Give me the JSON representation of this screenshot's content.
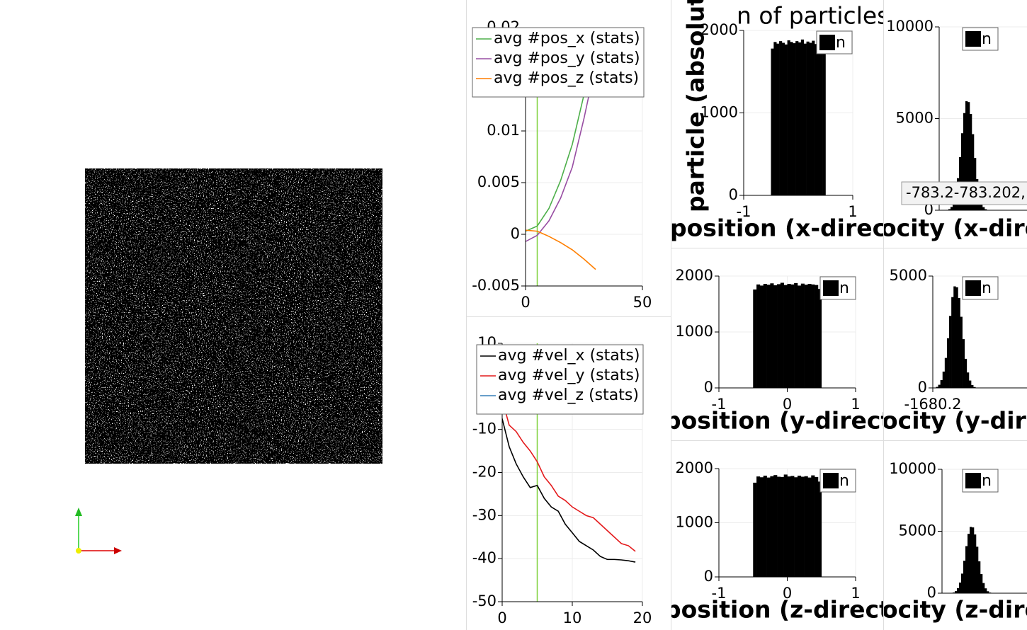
{
  "chart_data": [
    {
      "type": "line",
      "x": [
        0,
        5,
        10,
        15,
        20,
        25,
        30
      ],
      "series": [
        {
          "name": "avg #pos_x (stats)",
          "color": "#4daf4a",
          "values": [
            0.0003,
            0.0008,
            0.0025,
            0.0052,
            0.0087,
            0.0135,
            0.019
          ]
        },
        {
          "name": "avg #pos_y (stats)",
          "color": "#984ea3",
          "values": [
            -0.0007,
            -0.0001,
            0.0013,
            0.0035,
            0.0065,
            0.0112,
            0.0165
          ]
        },
        {
          "name": "avg #pos_z (stats)",
          "color": "#ff7f00",
          "values": [
            0.0004,
            0.0003,
            -0.0002,
            -0.0008,
            -0.0015,
            -0.0024,
            -0.0034
          ]
        }
      ],
      "xlim": [
        0,
        50
      ],
      "xticks": [
        0,
        50
      ],
      "ylim": [
        -0.005,
        0.02
      ],
      "yticks": [
        -0.005,
        0,
        0.005,
        0.01,
        0.015,
        0.02
      ],
      "grid": true,
      "marker_x": 5,
      "marker_color": "#7fd13b"
    },
    {
      "type": "line",
      "x": [
        0,
        1,
        2,
        3,
        4,
        5,
        6,
        7,
        8,
        9,
        10,
        11,
        12,
        13,
        14,
        15,
        16,
        17,
        18,
        19
      ],
      "series": [
        {
          "name": "avg #vel_x (stats)",
          "color": "#000000",
          "values": [
            -7.5,
            -14,
            -18,
            -21,
            -23.5,
            -23,
            -26,
            -28,
            -29,
            -32,
            -34,
            -36,
            -37,
            -38,
            -39.5,
            -40.2,
            -40.2,
            -40.3,
            -40.5,
            -40.8
          ]
        },
        {
          "name": "avg #vel_y (stats)",
          "color": "#e41a1c",
          "values": [
            -3,
            -9,
            -10.5,
            -13,
            -15,
            -17.5,
            -21,
            -23,
            -25.5,
            -26.5,
            -28,
            -29,
            -30,
            -30.5,
            -32,
            -33.5,
            -35,
            -36.5,
            -37,
            -38.3
          ]
        },
        {
          "name": "avg #vel_z (stats)",
          "color": "#377eb8",
          "values": [
            0,
            0,
            0,
            0,
            0,
            0,
            0,
            0,
            0,
            0,
            0,
            0,
            0,
            0,
            0,
            0,
            0,
            0,
            0,
            0
          ]
        }
      ],
      "xlim": [
        0,
        20
      ],
      "xticks": [
        0,
        10,
        20
      ],
      "ylim": [
        -50,
        10
      ],
      "yticks": [
        -50,
        -40,
        -30,
        -20,
        -10,
        0,
        10
      ],
      "grid": true,
      "marker_x": 5,
      "marker_color": "#7fd13b"
    },
    {
      "type": "histogram",
      "title": "n of particles a",
      "ylabel": "particle (absolute",
      "xlabel": "position (x-directi",
      "bins": [
        -0.5,
        -0.45,
        -0.4,
        -0.35,
        -0.3,
        -0.25,
        -0.2,
        -0.15,
        -0.1,
        -0.05,
        0,
        0.05,
        0.1,
        0.15,
        0.2,
        0.25,
        0.3,
        0.35,
        0.4,
        0.45,
        0.5
      ],
      "series": [
        {
          "name": "n",
          "color": "#000000",
          "values": [
            1780,
            1860,
            1840,
            1870,
            1850,
            1830,
            1880,
            1860,
            1845,
            1870,
            1855,
            1890,
            1840,
            1865,
            1850,
            1875,
            1835,
            1860,
            1870,
            1790
          ]
        }
      ],
      "xlim": [
        -1,
        1
      ],
      "xticks": [
        -1,
        1
      ],
      "ylim": [
        0,
        2000
      ],
      "yticks": [
        0,
        1000,
        2000
      ],
      "grid": true
    },
    {
      "type": "histogram",
      "xlabel": "ocity (x-dire",
      "tooltip": "-783.2-783.202,",
      "bins": [
        -600,
        -540,
        -480,
        -420,
        -360,
        -300,
        -240,
        -180,
        -120,
        -60,
        0,
        60,
        120,
        180,
        240,
        300,
        360,
        420,
        480,
        540,
        600
      ],
      "series": [
        {
          "name": "n",
          "color": "#000000",
          "values": [
            20,
            60,
            180,
            450,
            950,
            1750,
            2900,
            4200,
            5300,
            5950,
            5900,
            5250,
            4150,
            2850,
            1700,
            900,
            430,
            170,
            55,
            15
          ]
        }
      ],
      "xlim": [
        -800,
        2400
      ],
      "xticks": [],
      "ylim": [
        0,
        10000
      ],
      "yticks": [
        0,
        5000,
        10000
      ],
      "grid": true
    },
    {
      "type": "histogram",
      "xlabel": "position (y-directi",
      "bins": [
        -0.5,
        -0.45,
        -0.4,
        -0.35,
        -0.3,
        -0.25,
        -0.2,
        -0.15,
        -0.1,
        -0.05,
        0,
        0.05,
        0.1,
        0.15,
        0.2,
        0.25,
        0.3,
        0.35,
        0.4,
        0.45,
        0.5
      ],
      "series": [
        {
          "name": "n",
          "color": "#000000",
          "values": [
            1760,
            1850,
            1830,
            1860,
            1845,
            1870,
            1835,
            1855,
            1880,
            1840,
            1860,
            1850,
            1875,
            1830,
            1865,
            1845,
            1860,
            1850,
            1840,
            1770
          ]
        }
      ],
      "xlim": [
        -1,
        1
      ],
      "xticks": [
        -1,
        0,
        1
      ],
      "ylim": [
        0,
        2000
      ],
      "yticks": [
        0,
        1000,
        2000
      ],
      "grid": true
    },
    {
      "type": "histogram",
      "xlabel": "ocity (y-direc",
      "bins": [
        -1650,
        -1580,
        -1510,
        -1440,
        -1370,
        -1300,
        -1230,
        -1160,
        -1090,
        -1020,
        -950,
        -880,
        -810,
        -740,
        -670,
        -600,
        -530,
        -460,
        -390,
        -320,
        -250
      ],
      "series": [
        {
          "name": "n",
          "color": "#000000",
          "values": [
            15,
            45,
            140,
            350,
            730,
            1340,
            2220,
            3220,
            4060,
            4540,
            4500,
            4020,
            3180,
            2180,
            1300,
            690,
            330,
            130,
            40,
            12
          ]
        }
      ],
      "xlim": [
        -1680.2,
        2000
      ],
      "xticks": [
        -1680.2
      ],
      "ylim": [
        0,
        5000
      ],
      "yticks": [
        0,
        5000
      ],
      "grid": true
    },
    {
      "type": "histogram",
      "xlabel": "position (z-directi",
      "bins": [
        -0.5,
        -0.45,
        -0.4,
        -0.35,
        -0.3,
        -0.25,
        -0.2,
        -0.15,
        -0.1,
        -0.05,
        0,
        0.05,
        0.1,
        0.15,
        0.2,
        0.25,
        0.3,
        0.35,
        0.4,
        0.45,
        0.5
      ],
      "series": [
        {
          "name": "n",
          "color": "#000000",
          "values": [
            1740,
            1855,
            1840,
            1870,
            1835,
            1860,
            1880,
            1850,
            1845,
            1890,
            1855,
            1865,
            1840,
            1870,
            1850,
            1860,
            1835,
            1875,
            1845,
            1760
          ]
        }
      ],
      "xlim": [
        -1,
        1
      ],
      "xticks": [
        -1,
        0,
        1
      ],
      "ylim": [
        0,
        2000
      ],
      "yticks": [
        0,
        1000,
        2000
      ],
      "grid": true
    },
    {
      "type": "histogram",
      "xlabel": "ocity (z-dire",
      "bins": [
        -560,
        -500,
        -440,
        -380,
        -320,
        -260,
        -200,
        -140,
        -80,
        -20,
        40,
        100,
        160,
        220,
        280,
        340,
        400,
        460,
        520,
        580,
        640
      ],
      "series": [
        {
          "name": "n",
          "color": "#000000",
          "values": [
            18,
            55,
            165,
            410,
            860,
            1580,
            2620,
            3800,
            4790,
            5350,
            5310,
            4740,
            3750,
            2570,
            1540,
            820,
            390,
            155,
            50,
            14
          ]
        }
      ],
      "xlim": [
        -800,
        2400
      ],
      "xticks": [],
      "ylim": [
        0,
        10000
      ],
      "yticks": [
        0,
        5000,
        10000
      ],
      "grid": true
    }
  ]
}
